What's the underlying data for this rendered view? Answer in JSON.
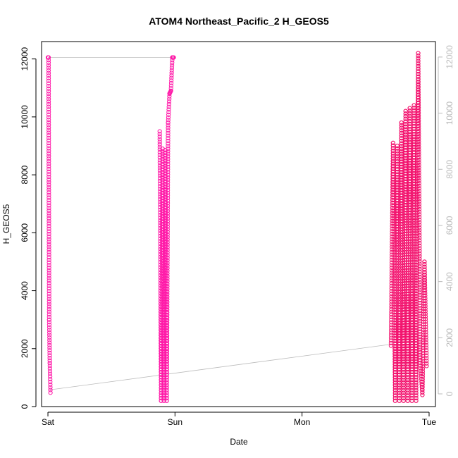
{
  "chart_data": {
    "type": "scatter",
    "title": "ATOM4 Northeast_Pacific_2 H_GEOS5",
    "xlabel": "Date",
    "ylabel": "H_GEOS5",
    "x_ticks": [
      "Sat",
      "Sun",
      "Mon",
      "Tue"
    ],
    "xlim_days": [
      -0.05,
      3.05
    ],
    "ylim": [
      0,
      12600
    ],
    "y_ticks": [
      0,
      2000,
      4000,
      6000,
      8000,
      10000,
      12000
    ],
    "right_ylim": [
      0,
      12500
    ],
    "right_y_ticks": [
      0,
      2000,
      4000,
      6000,
      8000,
      10000,
      12000
    ],
    "grid": false,
    "colors": {
      "points": "#ff1aa8",
      "points_late": "#f2136e",
      "connector": "#bbbbbb",
      "right_axis": "#bbbbbb"
    },
    "series": [
      {
        "segments": [
          {
            "start_day": 0.0,
            "end_day": 0.02,
            "profile": [
              12050,
              12050,
              3000,
              1500,
              480
            ]
          },
          {
            "start_day": 0.88,
            "end_day": 0.99,
            "profile": [
              9500,
              200,
              8900,
              200,
              8850,
              200,
              9800,
              10800,
              10900,
              12050,
              12050
            ]
          },
          {
            "start_day": 2.7,
            "end_day": 2.98,
            "profile": [
              2100,
              9100,
              200,
              9000,
              200,
              9800,
              200,
              10200,
              200,
              10300,
              200,
              10400,
              200,
              12200,
              1600,
              400,
              5000,
              1400
            ]
          }
        ],
        "connector_lines": [
          {
            "x_days": [
              0.0,
              0.99
            ],
            "y": [
              12050,
              12050
            ]
          },
          {
            "x_days": [
              0.02,
              2.7
            ],
            "y": [
              580,
              2150
            ]
          }
        ]
      }
    ]
  }
}
